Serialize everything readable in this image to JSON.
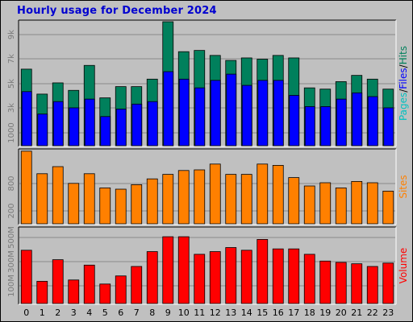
{
  "title": "Hourly usage for December 2024",
  "colors": {
    "hits": "#00805c",
    "files": "#0000ff",
    "sites": "#ff8000",
    "volume": "#ff0000",
    "pages": "#00c0c0",
    "title": "#0000d0",
    "background": "#c0c0c0"
  },
  "chart_data": [
    {
      "type": "bar",
      "name": "hits-files-pages",
      "categories": [
        "0",
        "1",
        "2",
        "3",
        "4",
        "5",
        "6",
        "7",
        "8",
        "9",
        "10",
        "11",
        "12",
        "13",
        "14",
        "15",
        "16",
        "17",
        "18",
        "19",
        "20",
        "21",
        "22",
        "23"
      ],
      "yticks": [
        "1000",
        "3k",
        "5k",
        "7k",
        "9k"
      ],
      "ylim": [
        0,
        10000
      ],
      "side_label_parts": [
        {
          "text": "Pages",
          "color": "#00c0c0"
        },
        {
          "text": "/",
          "color": "#000000"
        },
        {
          "text": "Files",
          "color": "#0000ff"
        },
        {
          "text": "/",
          "color": "#000000"
        },
        {
          "text": "Hits",
          "color": "#00805c"
        }
      ],
      "series": [
        {
          "name": "Hits",
          "values": [
            6200,
            4200,
            5100,
            4500,
            6500,
            3900,
            4800,
            4800,
            5400,
            10000,
            7600,
            7700,
            7300,
            6900,
            7100,
            7000,
            7300,
            7100,
            4700,
            4600,
            5200,
            5700,
            5400,
            4600
          ]
        },
        {
          "name": "Files",
          "values": [
            4400,
            2600,
            3600,
            3100,
            3800,
            2400,
            3000,
            3400,
            3600,
            6000,
            5400,
            4700,
            5300,
            5800,
            4900,
            5300,
            5300,
            4100,
            3200,
            3200,
            3800,
            4300,
            4000,
            3100
          ]
        },
        {
          "name": "Pages",
          "values": [
            0,
            0,
            0,
            0,
            0,
            0,
            0,
            0,
            0,
            0,
            0,
            0,
            0,
            0,
            0,
            0,
            0,
            0,
            0,
            0,
            0,
            0,
            0,
            0
          ]
        }
      ]
    },
    {
      "type": "bar",
      "name": "sites",
      "categories": [
        "0",
        "1",
        "2",
        "3",
        "4",
        "5",
        "6",
        "7",
        "8",
        "9",
        "10",
        "11",
        "12",
        "13",
        "14",
        "15",
        "16",
        "17",
        "18",
        "19",
        "20",
        "21",
        "22",
        "23"
      ],
      "yticks": [
        "200",
        "800"
      ],
      "ylim": [
        0,
        1150
      ],
      "side_label_parts": [
        {
          "text": "Sites",
          "color": "#ff8000"
        }
      ],
      "series": [
        {
          "name": "Sites",
          "values": [
            1140,
            790,
            900,
            640,
            790,
            570,
            550,
            620,
            710,
            780,
            840,
            850,
            940,
            780,
            780,
            940,
            920,
            730,
            600,
            650,
            570,
            670,
            650,
            520
          ]
        }
      ]
    },
    {
      "type": "bar",
      "name": "volume",
      "categories": [
        "0",
        "1",
        "2",
        "3",
        "4",
        "5",
        "6",
        "7",
        "8",
        "9",
        "10",
        "11",
        "12",
        "13",
        "14",
        "15",
        "16",
        "17",
        "18",
        "19",
        "20",
        "21",
        "22",
        "23"
      ],
      "yticks": [
        "100M",
        "300M",
        "500M"
      ],
      "ylim": [
        0,
        560
      ],
      "side_label_parts": [
        {
          "text": "Volume",
          "color": "#ff0000"
        }
      ],
      "series": [
        {
          "name": "Volume",
          "values": [
            400,
            170,
            330,
            180,
            290,
            150,
            210,
            280,
            390,
            500,
            500,
            370,
            390,
            420,
            400,
            480,
            410,
            410,
            370,
            320,
            310,
            300,
            280,
            305
          ]
        }
      ]
    }
  ]
}
